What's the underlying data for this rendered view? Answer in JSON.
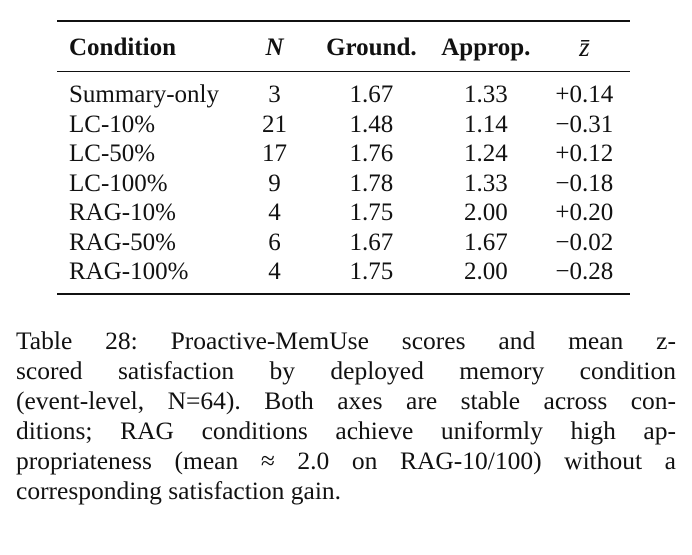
{
  "table": {
    "headers": {
      "condition": "Condition",
      "n": "N",
      "ground": "Ground.",
      "approp": "Approp.",
      "z": "z̄"
    },
    "rows": [
      {
        "condition": "Summary-only",
        "n": "3",
        "ground": "1.67",
        "approp": "1.33",
        "z": "+0.14"
      },
      {
        "condition": "LC-10%",
        "n": "21",
        "ground": "1.48",
        "approp": "1.14",
        "z": "−0.31"
      },
      {
        "condition": "LC-50%",
        "n": "17",
        "ground": "1.76",
        "approp": "1.24",
        "z": "+0.12"
      },
      {
        "condition": "LC-100%",
        "n": "9",
        "ground": "1.78",
        "approp": "1.33",
        "z": "−0.18"
      },
      {
        "condition": "RAG-10%",
        "n": "4",
        "ground": "1.75",
        "approp": "2.00",
        "z": "+0.20"
      },
      {
        "condition": "RAG-50%",
        "n": "6",
        "ground": "1.67",
        "approp": "1.67",
        "z": "−0.02"
      },
      {
        "condition": "RAG-100%",
        "n": "4",
        "ground": "1.75",
        "approp": "2.00",
        "z": "−0.28"
      }
    ]
  },
  "caption": {
    "lines": [
      "Table 28:  Proactive-MemUse scores and mean z-",
      "scored satisfaction by deployed memory condition",
      "(event-level, N=64). Both axes are stable across con-",
      "ditions; RAG conditions achieve uniformly high ap-",
      "propriateness (mean ≈ 2.0 on RAG-10/100) without a",
      "corresponding satisfaction gain."
    ]
  }
}
